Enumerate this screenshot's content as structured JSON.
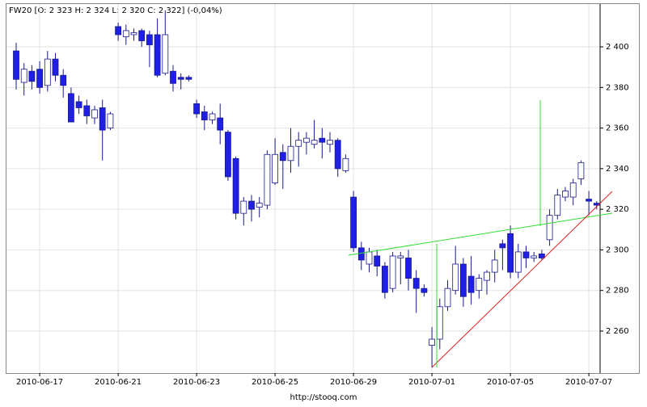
{
  "chart_data": {
    "type": "candlestick",
    "title": "FW20 [O: 2 323  H: 2 324  L: 2 320  C: 2 322] (-0,04%)",
    "footer": "http://stooq.com",
    "categories": [
      null,
      null,
      null,
      "2010-06-17",
      null,
      null,
      null,
      null,
      null,
      null,
      null,
      null,
      null,
      "2010-06-21",
      null,
      null,
      null,
      null,
      null,
      null,
      null,
      null,
      null,
      "2010-06-23",
      null,
      null,
      null,
      null,
      null,
      null,
      null,
      null,
      null,
      "2010-06-25",
      null,
      null,
      null,
      null,
      null,
      null,
      null,
      null,
      null,
      "2010-06-29",
      null,
      null,
      null,
      null,
      null,
      null,
      null,
      null,
      null,
      "2010-07-01",
      null,
      null,
      null,
      null,
      null,
      null,
      null,
      null,
      null,
      "2010-07-05",
      null,
      null,
      null,
      null,
      null,
      null,
      null,
      null,
      null,
      "2010-07-07",
      null
    ],
    "open": [
      2398,
      2382.5,
      2388,
      2389,
      2381,
      2394,
      2386,
      2377,
      2373,
      2371,
      2365,
      2370,
      2360,
      2410,
      2405,
      2406,
      2408,
      2406,
      2406,
      2387,
      2388,
      2385,
      2385,
      2372,
      2368,
      2364,
      2365,
      2358,
      2345,
      2318,
      2324,
      2321,
      2322,
      2333,
      2348,
      2344,
      2351,
      2353,
      2352,
      2355,
      2352,
      2354,
      2339,
      2326,
      2301,
      2293,
      2297,
      2292,
      2281,
      2296,
      2296,
      2286,
      2281,
      2253,
      2256,
      2272,
      2280,
      2293,
      2287,
      2280,
      2285,
      2289,
      2303,
      2308,
      2289,
      2299,
      2296,
      2298,
      2305,
      2317,
      2326,
      2326,
      2335,
      2325,
      2323
    ],
    "high": [
      2402,
      2392,
      2391,
      2393,
      2398,
      2397,
      2389,
      2380,
      2376,
      2374,
      2371,
      2374,
      2368,
      2412,
      2411,
      2409,
      2409,
      2408,
      2414,
      2418,
      2391,
      2387,
      2386,
      2374,
      2371,
      2368,
      2372,
      2359,
      2346,
      2326,
      2327,
      2326,
      2349,
      2355,
      2352,
      2360,
      2358,
      2358,
      2364,
      2360,
      2358,
      2355,
      2347,
      2329,
      2304,
      2301,
      2300,
      2294,
      2299,
      2299,
      2300,
      2290,
      2283,
      2262,
      2276,
      2285,
      2302,
      2296,
      2297,
      2288,
      2290,
      2300,
      2305,
      2312,
      2303,
      2302,
      2299,
      2300,
      2320,
      2330,
      2331,
      2335,
      2344,
      2329,
      2324
    ],
    "low": [
      2379,
      2376,
      2379,
      2377,
      2378,
      2383,
      2375,
      2363,
      2367,
      2362,
      2362,
      2344,
      2359,
      2403,
      2401,
      2403,
      2400,
      2390,
      2385,
      2386,
      2378,
      2379,
      2383,
      2365,
      2359,
      2362,
      2352,
      2334,
      2315,
      2312,
      2314,
      2316,
      2320,
      2332,
      2330,
      2338,
      2341,
      2347,
      2350,
      2345,
      2348,
      2336,
      2338,
      2299,
      2290,
      2289,
      2287,
      2276,
      2279,
      2283,
      2280,
      2269,
      2277,
      2242,
      2251,
      2270,
      2278,
      2272,
      2273,
      2276,
      2278,
      2284,
      2290,
      2286,
      2286,
      2291,
      2294,
      2295,
      2302,
      2315,
      2324,
      2322,
      2332,
      2317,
      2320
    ],
    "close": [
      2384,
      2389,
      2383,
      2380,
      2394,
      2386,
      2381,
      2363,
      2370,
      2366,
      2369,
      2359,
      2367,
      2406,
      2408,
      2407,
      2403,
      2401,
      2386,
      2406,
      2382,
      2384,
      2384,
      2367,
      2364,
      2367,
      2359,
      2336,
      2318,
      2324,
      2320,
      2323,
      2347,
      2347,
      2344,
      2351,
      2354,
      2355,
      2354,
      2353,
      2354,
      2340,
      2345,
      2301,
      2295,
      2299,
      2292,
      2279,
      2297,
      2297,
      2286,
      2281,
      2279,
      2256,
      2272,
      2281,
      2293,
      2277,
      2279,
      2286,
      2289,
      2295,
      2301,
      2289,
      2299,
      2296,
      2297,
      2296,
      2317,
      2327,
      2329,
      2333,
      2343,
      2324,
      2322
    ],
    "up_color": "#ffffff",
    "down_color": "#1f1fe6",
    "outline_color": "#1a1a8c",
    "ylim": [
      2239.3,
      2421.1
    ],
    "yticks": [
      {
        "value": 2260,
        "label": "2 260"
      },
      {
        "value": 2280,
        "label": "2 280"
      },
      {
        "value": 2300,
        "label": "2 300"
      },
      {
        "value": 2320,
        "label": "2 320"
      },
      {
        "value": 2340,
        "label": "2 340"
      },
      {
        "value": 2360,
        "label": "2 360"
      },
      {
        "value": 2380,
        "label": "2 380"
      },
      {
        "value": 2400,
        "label": "2 400"
      }
    ],
    "grid": true
  }
}
